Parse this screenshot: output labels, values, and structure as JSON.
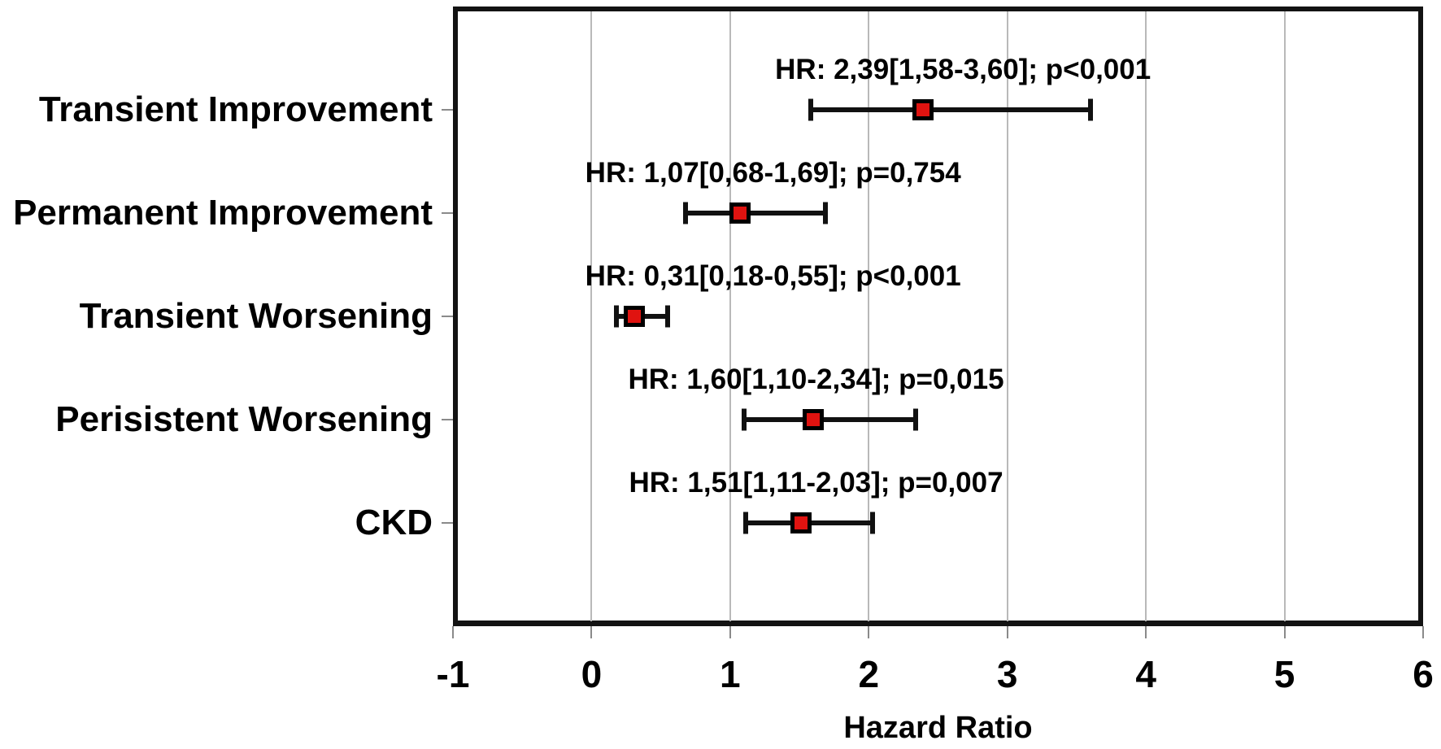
{
  "figure": {
    "background": "#ffffff",
    "text_color": "#000000"
  },
  "chart_data": {
    "type": "scatter",
    "subtype": "forest-plot",
    "title": "",
    "xlabel": "Hazard Ratio",
    "ylabel": "",
    "xlim": [
      -1,
      6
    ],
    "xticks": [
      -1,
      0,
      1,
      2,
      3,
      4,
      5,
      6
    ],
    "xtick_labels": [
      "-1",
      "0",
      "1",
      "2",
      "3",
      "4",
      "5",
      "6"
    ],
    "grid": true,
    "gridline_color": "#b9b9b9",
    "border_color": "#131313",
    "error_bar_color": "#111111",
    "marker_shape": "square",
    "marker_color": "#e01310",
    "marker_border_color": "#000000",
    "legend": "none",
    "rows": [
      {
        "label": "Transient Improvement",
        "hr": 2.39,
        "ci_low": 1.58,
        "ci_high": 3.6,
        "p": "p<0,001",
        "annotation": "HR: 2,39[1,58-3,60]; p<0,001",
        "annotation_center_x": 2.68
      },
      {
        "label": "Permanent Improvement",
        "hr": 1.07,
        "ci_low": 0.68,
        "ci_high": 1.69,
        "p": "p=0,754",
        "annotation": "HR: 1,07[0,68-1,69]; p=0,754",
        "annotation_center_x": 1.31
      },
      {
        "label": "Transient Worsening",
        "hr": 0.31,
        "ci_low": 0.18,
        "ci_high": 0.55,
        "p": "p<0,001",
        "annotation": "HR: 0,31[0,18-0,55]; p<0,001",
        "annotation_center_x": 1.31
      },
      {
        "label": "Perisistent Worsening",
        "hr": 1.6,
        "ci_low": 1.1,
        "ci_high": 2.34,
        "p": "p=0,015",
        "annotation": "HR: 1,60[1,10-2,34]; p=0,015",
        "annotation_center_x": 1.62
      },
      {
        "label": "CKD",
        "hr": 1.51,
        "ci_low": 1.11,
        "ci_high": 2.03,
        "p": "p=0,007",
        "annotation": "HR: 1,51[1,11-2,03]; p=0,007",
        "annotation_center_x": 1.62
      }
    ]
  }
}
